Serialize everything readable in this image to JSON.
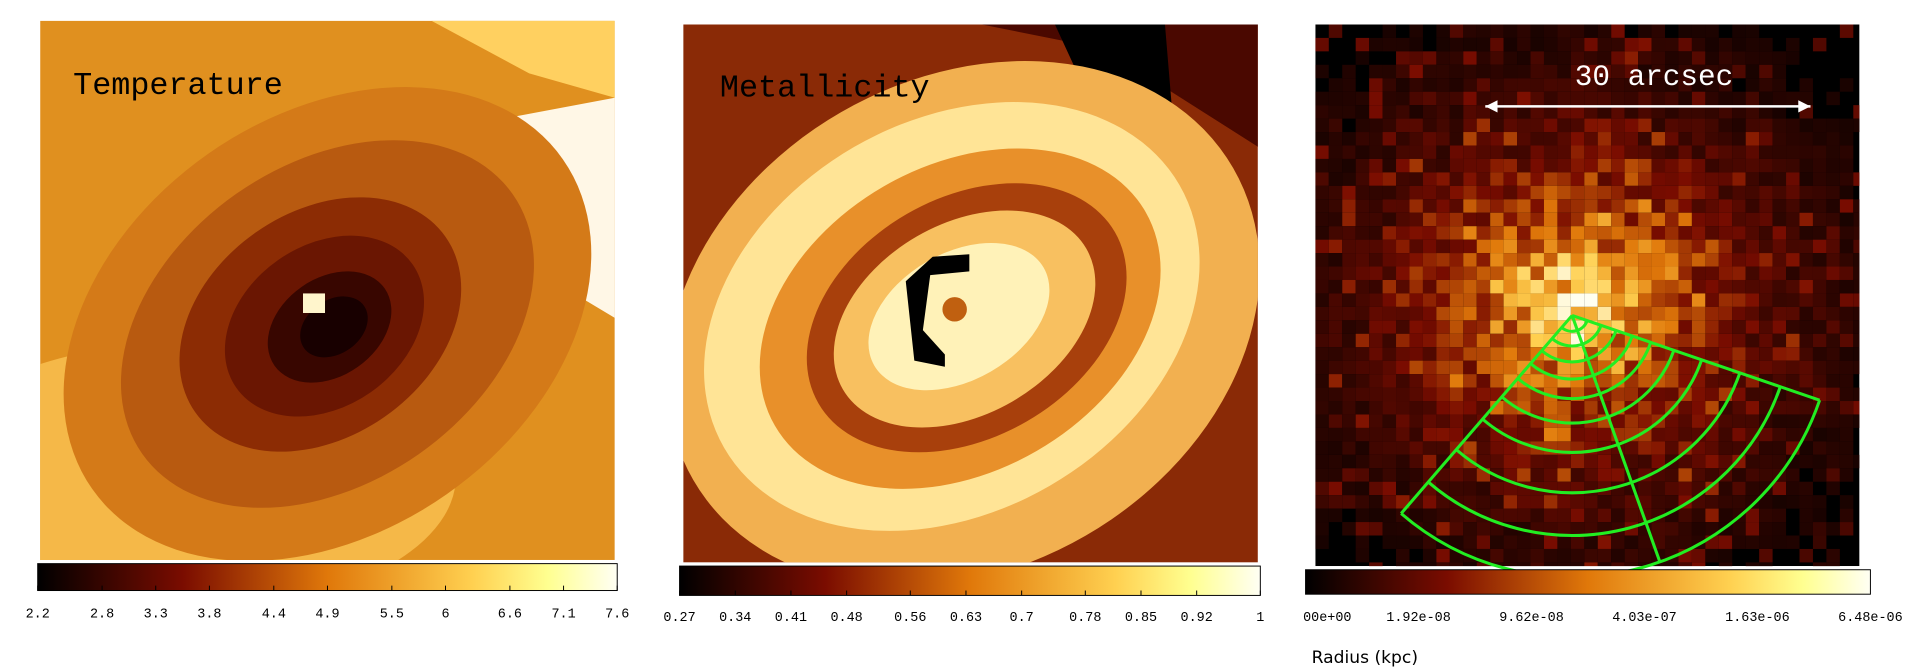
{
  "panels": [
    {
      "label": "Temperature",
      "colorbar": {
        "lim": [
          2.2,
          7.6
        ],
        "ticks": [
          2.2,
          2.8,
          3.3,
          3.8,
          4.4,
          4.9,
          5.5,
          6,
          6.6,
          7.1,
          7.6
        ]
      }
    },
    {
      "label": "Metallicity",
      "colorbar": {
        "lim": [
          0.27,
          1
        ],
        "ticks": [
          0.27,
          0.34,
          0.41,
          0.48,
          0.56,
          0.63,
          0.7,
          0.78,
          0.85,
          0.92,
          1
        ]
      }
    },
    {
      "label": "30 arcsec",
      "colorbar": {
        "tick_labels": [
          "00e+00",
          "1.92e-08",
          "9.62e-08",
          "4.03e-07",
          "1.63e-06",
          "6.48e-06"
        ]
      }
    }
  ],
  "xlabel": "Radius (kpc)"
}
